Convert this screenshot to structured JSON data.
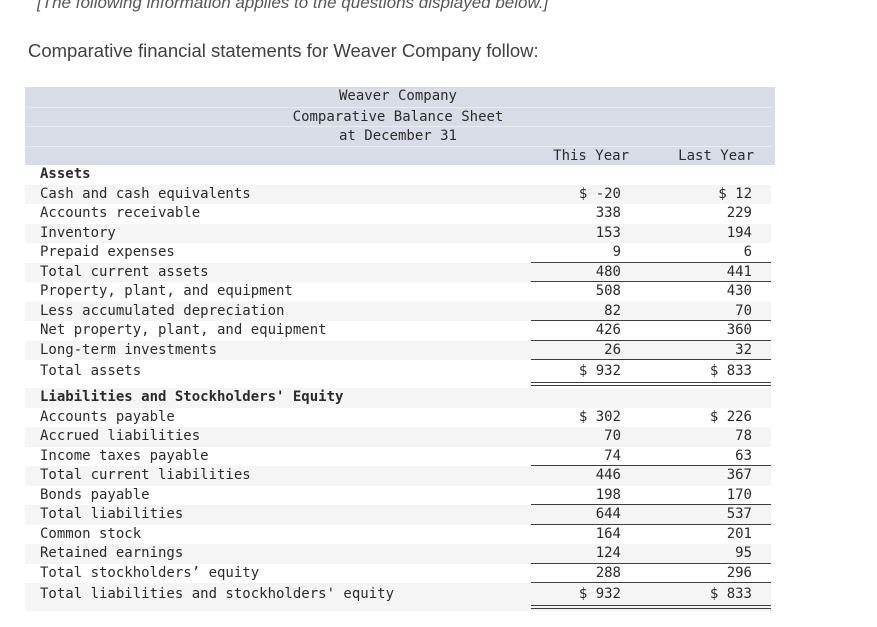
{
  "page": {
    "note": "[The following information applies to the questions displayed below.]",
    "intro": "Comparative financial statements for Weaver Company follow:"
  },
  "colors": {
    "header_bg": "#d8dce6",
    "row_stripe": "#f5f5f5",
    "rule": "#3d3d3d"
  },
  "balance_sheet": {
    "title_lines": [
      "Weaver Company",
      "Comparative Balance Sheet",
      "at December 31"
    ],
    "columns": {
      "col1": "This Year",
      "col2": "Last Year"
    },
    "rows": [
      {
        "label": "Assets",
        "this_year": "",
        "last_year": "",
        "bold": true
      },
      {
        "label": "Cash and cash equivalents",
        "this_year": "$ -20",
        "last_year": "$ 12"
      },
      {
        "label": "Accounts receivable",
        "this_year": "338",
        "last_year": "229"
      },
      {
        "label": "Inventory",
        "this_year": "153",
        "last_year": "194"
      },
      {
        "label": "Prepaid expenses",
        "this_year": "9",
        "last_year": "6",
        "underline": "single"
      },
      {
        "label": "Total current assets",
        "this_year": "480",
        "last_year": "441",
        "underline": "single"
      },
      {
        "label": "Property, plant, and equipment",
        "this_year": "508",
        "last_year": "430"
      },
      {
        "label": "Less accumulated depreciation",
        "this_year": "82",
        "last_year": "70",
        "underline": "single"
      },
      {
        "label": "Net property, plant, and equipment",
        "this_year": "426",
        "last_year": "360",
        "underline": "single"
      },
      {
        "label": "Long-term investments",
        "this_year": "26",
        "last_year": "32",
        "underline": "single"
      },
      {
        "label": "Total assets",
        "this_year": "$ 932",
        "last_year": "$ 833",
        "underline": "double",
        "tall": true
      },
      {
        "label": "Liabilities and Stockholders' Equity",
        "this_year": "",
        "last_year": "",
        "bold": true
      },
      {
        "label": "Accounts payable",
        "this_year": "$ 302",
        "last_year": "$ 226"
      },
      {
        "label": "Accrued liabilities",
        "this_year": "70",
        "last_year": "78"
      },
      {
        "label": "Income taxes payable",
        "this_year": "74",
        "last_year": "63",
        "underline": "single"
      },
      {
        "label": "Total current liabilities",
        "this_year": "446",
        "last_year": "367"
      },
      {
        "label": "Bonds payable",
        "this_year": "198",
        "last_year": "170",
        "underline": "single"
      },
      {
        "label": "Total liabilities",
        "this_year": "644",
        "last_year": "537",
        "underline": "single"
      },
      {
        "label": "Common stock",
        "this_year": "164",
        "last_year": "201"
      },
      {
        "label": "Retained earnings",
        "this_year": "124",
        "last_year": "95",
        "underline": "single"
      },
      {
        "label": "Total stockholders’ equity",
        "this_year": "288",
        "last_year": "296",
        "underline": "single"
      },
      {
        "label": "Total liabilities and stockholders' equity",
        "this_year": "$ 932",
        "last_year": "$ 833",
        "underline": "double",
        "tall": true
      }
    ]
  }
}
